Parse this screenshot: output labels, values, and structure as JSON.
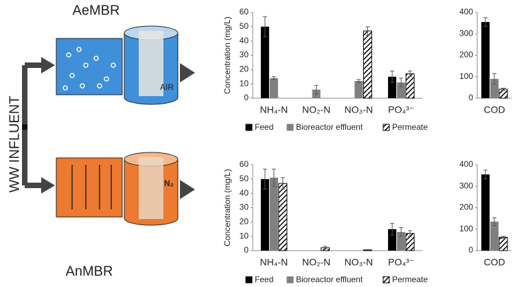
{
  "diagram": {
    "influent_label": "WW INFLUENT",
    "aerobic": {
      "label": "AeMBR",
      "gas": "AIR"
    },
    "anaerobic": {
      "label": "AnMBR",
      "gas": "N₂"
    }
  },
  "chart_data": [
    {
      "type": "bar",
      "y_label": "Concentration (mg/L)",
      "categories": [
        "NH₄-N",
        "NO₂-N",
        "NO₃-N",
        "PO₄³⁻"
      ],
      "series": [
        {
          "name": "Feed",
          "color": "#000000",
          "values": [
            50,
            null,
            null,
            15
          ],
          "errors": [
            7,
            null,
            null,
            4
          ]
        },
        {
          "name": "Bioreactor effluent",
          "color": "#808080",
          "values": [
            14,
            6,
            12,
            11
          ],
          "errors": [
            1,
            3,
            1,
            3
          ]
        },
        {
          "name": "Permeate",
          "color": "#000000",
          "hatch": true,
          "values": [
            null,
            null,
            47,
            17
          ],
          "errors": [
            null,
            null,
            3,
            2
          ]
        }
      ],
      "ylim": [
        0,
        60
      ],
      "yticks": [
        0,
        10,
        20,
        30,
        40,
        50,
        60
      ],
      "legend": "bottom"
    },
    {
      "type": "bar",
      "categories": [
        "COD"
      ],
      "series": [
        {
          "color": "#000000",
          "values": [
            355
          ],
          "errors": [
            20
          ]
        },
        {
          "color": "#808080",
          "values": [
            90
          ],
          "errors": [
            25
          ]
        },
        {
          "color": "#000000",
          "hatch": true,
          "values": [
            42
          ],
          "errors": [
            5
          ]
        }
      ],
      "ylim": [
        0,
        400
      ],
      "yticks": [
        0,
        100,
        200,
        300,
        400
      ]
    },
    {
      "type": "bar",
      "y_label": "Concentration (mg/L)",
      "categories": [
        "NH₄-N",
        "NO₂-N",
        "NO₃-N",
        "PO₄³⁻"
      ],
      "series": [
        {
          "name": "Feed",
          "color": "#000000",
          "values": [
            50,
            null,
            null,
            15
          ],
          "errors": [
            7,
            null,
            null,
            4
          ]
        },
        {
          "name": "Bioreactor effluent",
          "color": "#808080",
          "values": [
            51,
            null,
            null,
            13
          ],
          "errors": [
            6,
            null,
            null,
            3
          ]
        },
        {
          "name": "Permeate",
          "color": "#000000",
          "hatch": true,
          "values": [
            47,
            2,
            0.5,
            12
          ],
          "errors": [
            4,
            1,
            null,
            2
          ]
        }
      ],
      "ylim": [
        0,
        60
      ],
      "yticks": [
        0,
        10,
        20,
        30,
        40,
        50,
        60
      ],
      "legend": "bottom"
    },
    {
      "type": "bar",
      "categories": [
        "COD"
      ],
      "series": [
        {
          "color": "#000000",
          "values": [
            355
          ],
          "errors": [
            20
          ]
        },
        {
          "color": "#808080",
          "values": [
            135
          ],
          "errors": [
            18
          ]
        },
        {
          "color": "#000000",
          "hatch": true,
          "values": [
            62
          ],
          "errors": [
            5
          ]
        }
      ],
      "ylim": [
        0,
        400
      ],
      "yticks": [
        0,
        100,
        200,
        300,
        400
      ]
    }
  ]
}
